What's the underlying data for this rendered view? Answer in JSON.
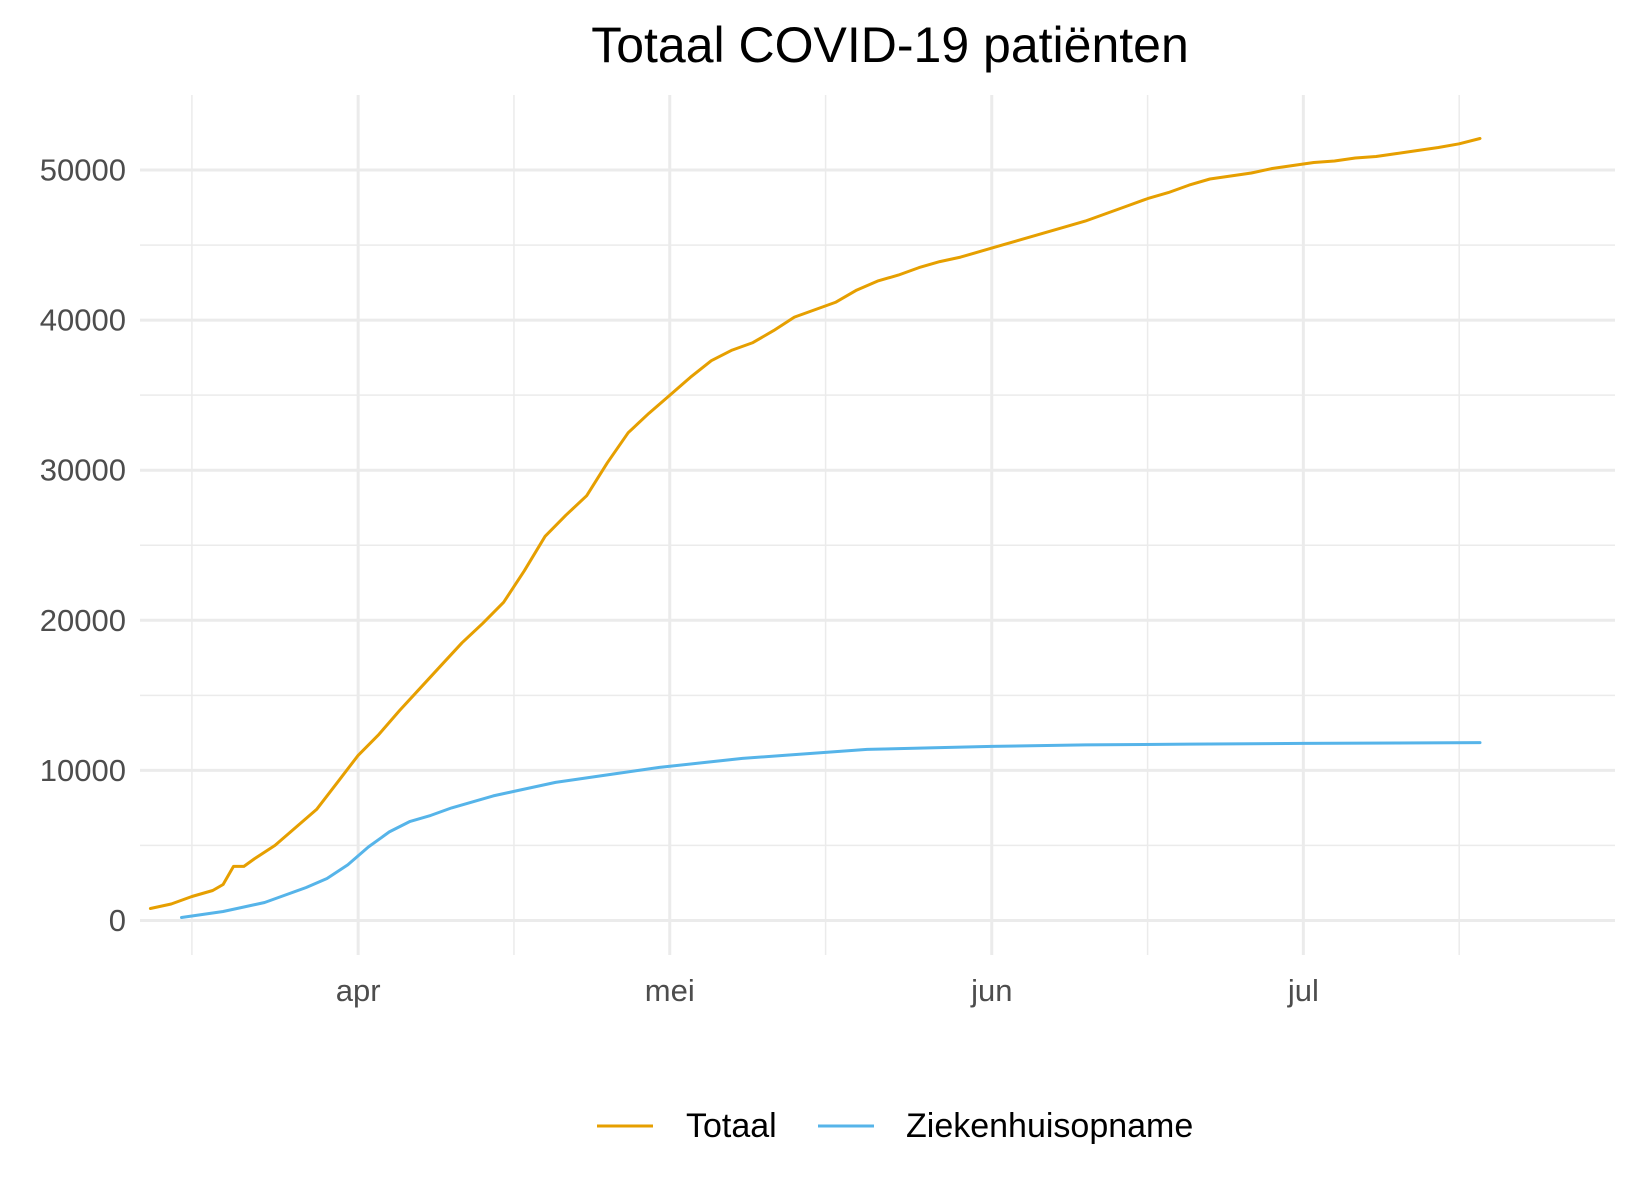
{
  "chart_data": {
    "type": "line",
    "title": "Totaal COVID-19 patiënten",
    "xlabel": "",
    "ylabel": "",
    "x_type": "date",
    "xlim": [
      "2020-03-11",
      "2020-07-31"
    ],
    "ylim": [
      -2300,
      55000
    ],
    "x_ticks": [
      {
        "date": "2020-04-01",
        "label": "apr"
      },
      {
        "date": "2020-05-01",
        "label": "mei"
      },
      {
        "date": "2020-06-01",
        "label": "jun"
      },
      {
        "date": "2020-07-01",
        "label": "jul"
      }
    ],
    "x_minor_ticks": [
      "2020-03-16",
      "2020-04-16",
      "2020-05-16",
      "2020-06-16",
      "2020-07-16"
    ],
    "y_ticks": [
      0,
      10000,
      20000,
      30000,
      40000,
      50000
    ],
    "y_minor_ticks": [
      5000,
      15000,
      25000,
      35000,
      45000
    ],
    "grid": true,
    "legend": {
      "position": "bottom"
    },
    "series": [
      {
        "name": "Totaal",
        "color": "#E69F00",
        "points": [
          [
            "2020-03-12",
            800
          ],
          [
            "2020-03-14",
            1100
          ],
          [
            "2020-03-16",
            1600
          ],
          [
            "2020-03-18",
            2000
          ],
          [
            "2020-03-19",
            2400
          ],
          [
            "2020-03-20",
            3600
          ],
          [
            "2020-03-21",
            3600
          ],
          [
            "2020-03-22",
            4100
          ],
          [
            "2020-03-24",
            5000
          ],
          [
            "2020-03-26",
            6200
          ],
          [
            "2020-03-28",
            7400
          ],
          [
            "2020-03-30",
            9200
          ],
          [
            "2020-04-01",
            11000
          ],
          [
            "2020-04-03",
            12400
          ],
          [
            "2020-04-05",
            14000
          ],
          [
            "2020-04-07",
            15500
          ],
          [
            "2020-04-09",
            17000
          ],
          [
            "2020-04-11",
            18500
          ],
          [
            "2020-04-13",
            19800
          ],
          [
            "2020-04-15",
            21200
          ],
          [
            "2020-04-17",
            23300
          ],
          [
            "2020-04-19",
            25600
          ],
          [
            "2020-04-21",
            27000
          ],
          [
            "2020-04-23",
            28300
          ],
          [
            "2020-04-25",
            30500
          ],
          [
            "2020-04-27",
            32500
          ],
          [
            "2020-04-29",
            33800
          ],
          [
            "2020-05-01",
            35000
          ],
          [
            "2020-05-03",
            36200
          ],
          [
            "2020-05-05",
            37300
          ],
          [
            "2020-05-07",
            38000
          ],
          [
            "2020-05-09",
            38500
          ],
          [
            "2020-05-11",
            39300
          ],
          [
            "2020-05-13",
            40200
          ],
          [
            "2020-05-15",
            40700
          ],
          [
            "2020-05-17",
            41200
          ],
          [
            "2020-05-19",
            42000
          ],
          [
            "2020-05-21",
            42600
          ],
          [
            "2020-05-23",
            43000
          ],
          [
            "2020-05-25",
            43500
          ],
          [
            "2020-05-27",
            43900
          ],
          [
            "2020-05-29",
            44200
          ],
          [
            "2020-05-31",
            44600
          ],
          [
            "2020-06-02",
            45000
          ],
          [
            "2020-06-04",
            45400
          ],
          [
            "2020-06-06",
            45800
          ],
          [
            "2020-06-08",
            46200
          ],
          [
            "2020-06-10",
            46600
          ],
          [
            "2020-06-12",
            47100
          ],
          [
            "2020-06-14",
            47600
          ],
          [
            "2020-06-16",
            48100
          ],
          [
            "2020-06-18",
            48500
          ],
          [
            "2020-06-20",
            49000
          ],
          [
            "2020-06-22",
            49400
          ],
          [
            "2020-06-24",
            49600
          ],
          [
            "2020-06-26",
            49800
          ],
          [
            "2020-06-28",
            50100
          ],
          [
            "2020-06-30",
            50300
          ],
          [
            "2020-07-02",
            50500
          ],
          [
            "2020-07-04",
            50600
          ],
          [
            "2020-07-06",
            50800
          ],
          [
            "2020-07-08",
            50900
          ],
          [
            "2020-07-10",
            51100
          ],
          [
            "2020-07-12",
            51300
          ],
          [
            "2020-07-14",
            51500
          ],
          [
            "2020-07-16",
            51750
          ],
          [
            "2020-07-18",
            52100
          ]
        ]
      },
      {
        "name": "Ziekenhuisopname",
        "color": "#56B4E9",
        "points": [
          [
            "2020-03-15",
            200
          ],
          [
            "2020-03-17",
            400
          ],
          [
            "2020-03-19",
            600
          ],
          [
            "2020-03-21",
            900
          ],
          [
            "2020-03-23",
            1200
          ],
          [
            "2020-03-25",
            1700
          ],
          [
            "2020-03-27",
            2200
          ],
          [
            "2020-03-29",
            2800
          ],
          [
            "2020-03-31",
            3700
          ],
          [
            "2020-04-02",
            4900
          ],
          [
            "2020-04-04",
            5900
          ],
          [
            "2020-04-06",
            6600
          ],
          [
            "2020-04-08",
            7000
          ],
          [
            "2020-04-10",
            7500
          ],
          [
            "2020-04-12",
            7900
          ],
          [
            "2020-04-14",
            8300
          ],
          [
            "2020-04-16",
            8600
          ],
          [
            "2020-04-18",
            8900
          ],
          [
            "2020-04-20",
            9200
          ],
          [
            "2020-04-22",
            9400
          ],
          [
            "2020-04-24",
            9600
          ],
          [
            "2020-04-26",
            9800
          ],
          [
            "2020-04-28",
            10000
          ],
          [
            "2020-04-30",
            10200
          ],
          [
            "2020-05-04",
            10500
          ],
          [
            "2020-05-08",
            10800
          ],
          [
            "2020-05-12",
            11000
          ],
          [
            "2020-05-16",
            11200
          ],
          [
            "2020-05-20",
            11400
          ],
          [
            "2020-05-26",
            11500
          ],
          [
            "2020-06-01",
            11600
          ],
          [
            "2020-06-10",
            11700
          ],
          [
            "2020-06-20",
            11750
          ],
          [
            "2020-07-01",
            11800
          ],
          [
            "2020-07-18",
            11850
          ]
        ]
      }
    ]
  }
}
